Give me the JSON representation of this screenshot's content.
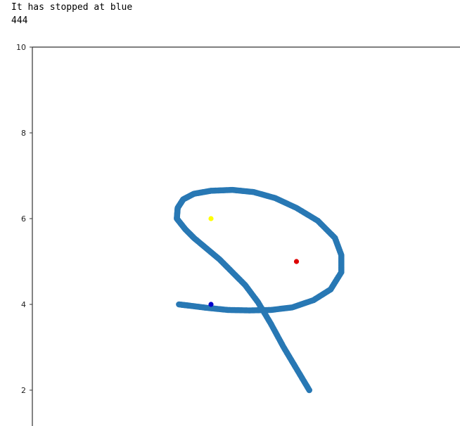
{
  "output": {
    "lines": [
      "It has stopped at blue",
      "444"
    ]
  },
  "chart_data": {
    "type": "scatter",
    "title": "",
    "xlabel": "",
    "ylabel": "",
    "xlim": [
      0,
      10
    ],
    "ylim": [
      1.2,
      10
    ],
    "yticks": [
      2,
      4,
      6,
      8,
      10
    ],
    "grid": false,
    "colors": {
      "trail": "#2878b4",
      "red": "#dd0000",
      "yellow": "#ffff00",
      "blue": "#0000cc"
    },
    "series": [
      {
        "kind": "trail",
        "x": [
          6.3,
          6.0,
          5.7,
          5.4,
          5.1,
          4.8,
          4.5,
          4.2,
          3.9,
          3.6,
          3.4,
          3.2,
          3.22,
          3.35,
          3.6,
          4.0,
          4.5,
          5.0,
          5.5,
          6.0,
          6.5,
          6.9,
          7.05,
          7.05,
          6.8,
          6.4,
          5.9,
          5.4,
          4.9,
          4.4,
          3.9,
          3.5,
          3.25
        ],
        "y": [
          2.0,
          2.5,
          3.0,
          3.55,
          4.05,
          4.45,
          4.75,
          5.05,
          5.3,
          5.55,
          5.75,
          6.0,
          6.25,
          6.45,
          6.58,
          6.65,
          6.67,
          6.62,
          6.48,
          6.25,
          5.95,
          5.55,
          5.15,
          4.75,
          4.35,
          4.1,
          3.93,
          3.87,
          3.86,
          3.87,
          3.92,
          3.97,
          4.0
        ]
      }
    ],
    "points": [
      {
        "name": "red",
        "x": 6.0,
        "y": 5.0
      },
      {
        "name": "yellow",
        "x": 4.0,
        "y": 6.0
      },
      {
        "name": "blue",
        "x": 4.0,
        "y": 4.0
      }
    ]
  }
}
